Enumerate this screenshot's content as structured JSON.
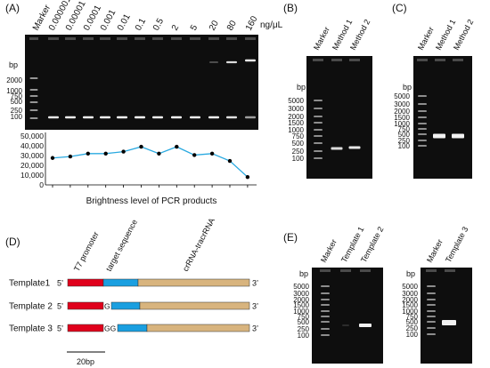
{
  "panels": {
    "A": {
      "label": "(A)",
      "marker": "Marker",
      "lanes": [
        "0.000001",
        "0.00001",
        "0.0001",
        "0.001",
        "0.01",
        "0.1",
        "0.5",
        "2",
        "5",
        "20",
        "80",
        "160"
      ],
      "unit": "ng/μL",
      "bp_label": "bp",
      "ladder": [
        "2000",
        "1000",
        "750",
        "500",
        "250",
        "100"
      ]
    },
    "B": {
      "label": "(B)",
      "lanes": [
        "Marker",
        "Method 1",
        "Method 2"
      ],
      "bp_label": "bp",
      "ladder": [
        "5000",
        "3000",
        "2000",
        "1500",
        "1000",
        "750",
        "500",
        "250",
        "100"
      ]
    },
    "C": {
      "label": "(C)",
      "lanes": [
        "Marker",
        "Method 1",
        "Method 2"
      ],
      "bp_label": "bp",
      "ladder": [
        "5000",
        "3000",
        "2000",
        "1500",
        "1000",
        "750",
        "500",
        "250",
        "100"
      ]
    },
    "D": {
      "label": "(D)",
      "headers": [
        "T7 promoter",
        "target sequence",
        "crRNA-tracrRNA"
      ],
      "templates": [
        {
          "name": "Template1",
          "five": "5’",
          "insert": "",
          "three": "3’"
        },
        {
          "name": "Template 2",
          "five": "5’",
          "insert": "G",
          "three": "3’"
        },
        {
          "name": "Template 3",
          "five": "5’",
          "insert": "GG",
          "three": "3’"
        }
      ],
      "scale": "20bp",
      "colors": {
        "promoter": "#e0001b",
        "target": "#1a9fe0",
        "scaffold": "#d8b47e"
      }
    },
    "E": {
      "label": "(E)",
      "gel1_lanes": [
        "Marker",
        "Template 1",
        "Template 2"
      ],
      "gel2_lanes": [
        "Marker",
        "Template 3"
      ],
      "bp_label": "bp",
      "ladder": [
        "5000",
        "3000",
        "2000",
        "1500",
        "1000",
        "750",
        "500",
        "250",
        "100"
      ]
    }
  },
  "chart_data": {
    "type": "line",
    "xlabel": "Brightness level of PCR products",
    "ylim": [
      0,
      50000
    ],
    "yticks": [
      "50,000",
      "40,000",
      "30,000",
      "20,000",
      "10,000",
      "0"
    ],
    "categories": [
      "0.000001",
      "0.00001",
      "0.0001",
      "0.001",
      "0.01",
      "0.1",
      "0.5",
      "2",
      "5",
      "20",
      "80",
      "160"
    ],
    "values": [
      27500,
      29000,
      32000,
      32000,
      34000,
      39000,
      32000,
      39000,
      30500,
      32000,
      24500,
      8000
    ],
    "line_color": "#29a9e0"
  }
}
